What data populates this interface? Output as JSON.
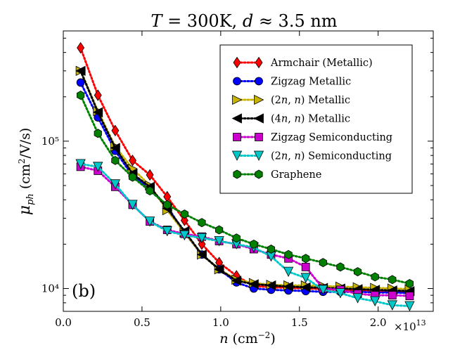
{
  "chart_data": {
    "type": "line",
    "title": "T = 300K, d ≈ 3.5 nm",
    "title_parts": [
      "T",
      " = 300K, ",
      "d",
      " ≈ 3.5 nm"
    ],
    "xlabel": "n (cm⁻²)",
    "ylabel": "μph (cm²/V/s)",
    "xscale_label": "×10¹³",
    "panel_label": "(b)",
    "yscale": "log",
    "xlim": [
      0.0,
      2.35
    ],
    "ylim": [
      7000,
      560000
    ],
    "xticks": [
      0.0,
      0.5,
      1.0,
      1.5,
      2.0
    ],
    "xtick_labels": [
      "0.0",
      "0.5",
      "1.0",
      "1.5",
      "2.0"
    ],
    "yticks": [
      10000,
      100000
    ],
    "ytick_labels": [
      "10⁴",
      "10⁵"
    ],
    "legend_position": "top-right",
    "series": [
      {
        "name": "Armchair (Metallic)",
        "marker": "diamond",
        "color": "#ff0000",
        "line_color": "#ff0000",
        "x": [
          0.11,
          0.22,
          0.33,
          0.44,
          0.55,
          0.66,
          0.77,
          0.88,
          0.99,
          1.1,
          1.21,
          1.32,
          1.43,
          1.54,
          1.65,
          1.76,
          1.87,
          1.98,
          2.09,
          2.2
        ],
        "values": [
          430000,
          205000,
          118000,
          74000,
          59000,
          42000,
          29000,
          20000,
          15000,
          12200,
          10400,
          10200,
          10100,
          10000,
          9900,
          9800,
          9700,
          9600,
          9500,
          9400
        ]
      },
      {
        "name": "Zigzag Metallic",
        "marker": "circle",
        "color": "#0000ff",
        "line_color": "#0000ff",
        "x": [
          0.11,
          0.22,
          0.33,
          0.44,
          0.55,
          0.66,
          0.77,
          0.88,
          0.99,
          1.1,
          1.21,
          1.32,
          1.43,
          1.54,
          1.65,
          1.76,
          1.87,
          1.98,
          2.09,
          2.2
        ],
        "values": [
          250000,
          145000,
          86000,
          58000,
          48000,
          36000,
          24000,
          17000,
          13500,
          11000,
          10000,
          9800,
          9700,
          9600,
          9500,
          9500,
          9500,
          9400,
          9400,
          9300
        ]
      },
      {
        "name": "(2n, n) Metallic",
        "name_parts": [
          "(2",
          "n",
          ", ",
          "n",
          ") Metallic"
        ],
        "marker": "triangle-right",
        "color": "#c8b400",
        "line_color": "#c8b400",
        "x": [
          0.11,
          0.22,
          0.33,
          0.44,
          0.55,
          0.66,
          0.77,
          0.88,
          0.99,
          1.1,
          1.21,
          1.32,
          1.43,
          1.54,
          1.65,
          1.76,
          1.87,
          1.98,
          2.09,
          2.2
        ],
        "values": [
          300000,
          160000,
          92000,
          65000,
          50000,
          34000,
          24000,
          17000,
          13500,
          11500,
          10900,
          10600,
          10500,
          10500,
          10400,
          10300,
          10200,
          10100,
          10000,
          9900
        ]
      },
      {
        "name": "(4n, n) Metallic",
        "name_parts": [
          "(4",
          "n",
          ", ",
          "n",
          ") Metallic"
        ],
        "marker": "triangle-left",
        "color": "#000000",
        "line_color": "#000000",
        "x": [
          0.11,
          0.22,
          0.33,
          0.44,
          0.55,
          0.66,
          0.77,
          0.88,
          0.99,
          1.1,
          1.21,
          1.32,
          1.43,
          1.54,
          1.65,
          1.76,
          1.87,
          1.98,
          2.09,
          2.2
        ],
        "values": [
          300000,
          157000,
          90000,
          60000,
          49000,
          35000,
          24500,
          17000,
          13500,
          11300,
          10700,
          10500,
          10300,
          10200,
          10100,
          10000,
          9900,
          9800,
          9700,
          9600
        ]
      },
      {
        "name": "Zigzag Semiconducting",
        "marker": "square",
        "color": "#cc00cc",
        "line_color": "#cc00cc",
        "x": [
          0.11,
          0.22,
          0.33,
          0.44,
          0.55,
          0.66,
          0.77,
          0.88,
          0.99,
          1.1,
          1.21,
          1.32,
          1.43,
          1.54,
          1.65,
          1.76,
          1.87,
          1.98,
          2.09,
          2.2
        ],
        "values": [
          67000,
          63000,
          49000,
          37000,
          28500,
          25000,
          23500,
          22500,
          21000,
          20000,
          18500,
          17000,
          16000,
          14000,
          10000,
          9800,
          9200,
          9000,
          9000,
          8900
        ]
      },
      {
        "name": "(2n, n) Semiconducting",
        "name_parts": [
          "(2",
          "n",
          ", ",
          "n",
          ") Semiconducting"
        ],
        "marker": "triangle-down",
        "color": "#00c8c8",
        "line_color": "#00c8c8",
        "x": [
          0.11,
          0.22,
          0.33,
          0.44,
          0.55,
          0.66,
          0.77,
          0.88,
          0.99,
          1.1,
          1.21,
          1.32,
          1.43,
          1.54,
          1.65,
          1.76,
          1.87,
          1.98,
          2.09,
          2.2
        ],
        "values": [
          70000,
          67000,
          51000,
          37000,
          28500,
          24500,
          23000,
          22000,
          21000,
          20000,
          19000,
          16500,
          13000,
          11800,
          9800,
          9300,
          8600,
          8200,
          7700,
          7600
        ]
      },
      {
        "name": "Graphene",
        "marker": "hexagon",
        "color": "#008000",
        "line_color": "#008000",
        "x": [
          0.11,
          0.22,
          0.33,
          0.44,
          0.55,
          0.66,
          0.77,
          0.88,
          0.99,
          1.1,
          1.21,
          1.32,
          1.43,
          1.54,
          1.65,
          1.76,
          1.87,
          1.98,
          2.09,
          2.2
        ],
        "values": [
          205000,
          113000,
          74000,
          57000,
          46000,
          37000,
          32000,
          28000,
          25000,
          22000,
          20000,
          18500,
          17000,
          16000,
          15000,
          14000,
          13000,
          12000,
          11500,
          10800
        ]
      }
    ]
  }
}
